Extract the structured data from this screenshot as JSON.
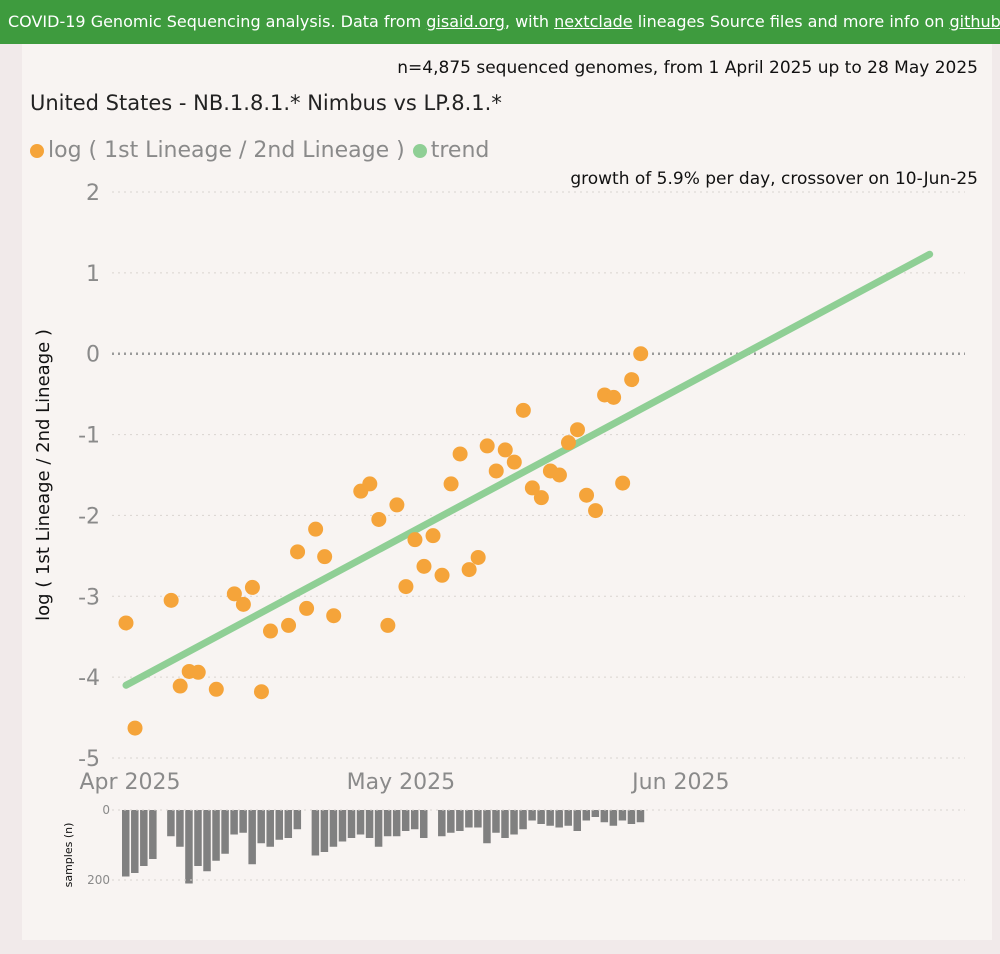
{
  "banner": {
    "text_1": "COVID-19 Genomic Sequencing analysis. Data from ",
    "link_gisaid": "gisaid.org",
    "text_2": ", with ",
    "link_nextclade": "nextclade",
    "text_3": " lineages Source files and more info on ",
    "link_github": "github"
  },
  "colors": {
    "banner_bg": "#3e9b3e",
    "points": "#f5a43a",
    "trend": "#8fcf95",
    "bars": "#808080"
  },
  "chart_data": [
    {
      "type": "scatter",
      "subtitle": "n=4,875 sequenced genomes, from 1 April 2025 up to 28 May 2025",
      "title": "United States - NB.1.8.1.* Nimbus vs LP.8.1.*",
      "annotation": "growth of 5.9% per day, crossover on 10-Jun-25",
      "ylabel": "log ( 1st Lineage / 2nd Lineage )",
      "xlabel": "",
      "legend": [
        {
          "name": "log ( 1st Lineage / 2nd Lineage )",
          "color": "#f5a43a"
        },
        {
          "name": "trend",
          "color": "#8fcf95"
        }
      ],
      "legend_position": "top-left",
      "ylim": [
        -5,
        2
      ],
      "y_ticks": [
        "2",
        "1",
        "0",
        "-1",
        "-2",
        "-3",
        "-4",
        "-5"
      ],
      "x_tick_labels": [
        {
          "label": "Apr 2025",
          "date": "2025-04-01"
        },
        {
          "label": "May 2025",
          "date": "2025-05-01"
        },
        {
          "label": "Jun 2025",
          "date": "2025-06-01"
        }
      ],
      "xlim": [
        "2025-04-01",
        "2025-06-29"
      ],
      "grid": "horizontal dotted",
      "points": [
        {
          "x": "2025-04-01",
          "y": -3.33
        },
        {
          "x": "2025-04-02",
          "y": -4.63
        },
        {
          "x": "2025-04-06",
          "y": -3.05
        },
        {
          "x": "2025-04-07",
          "y": -4.11
        },
        {
          "x": "2025-04-08",
          "y": -3.93
        },
        {
          "x": "2025-04-09",
          "y": -3.94
        },
        {
          "x": "2025-04-11",
          "y": -4.15
        },
        {
          "x": "2025-04-13",
          "y": -2.97
        },
        {
          "x": "2025-04-14",
          "y": -3.1
        },
        {
          "x": "2025-04-15",
          "y": -2.89
        },
        {
          "x": "2025-04-16",
          "y": -4.18
        },
        {
          "x": "2025-04-17",
          "y": -3.43
        },
        {
          "x": "2025-04-19",
          "y": -3.36
        },
        {
          "x": "2025-04-20",
          "y": -2.45
        },
        {
          "x": "2025-04-21",
          "y": -3.15
        },
        {
          "x": "2025-04-22",
          "y": -2.17
        },
        {
          "x": "2025-04-23",
          "y": -2.51
        },
        {
          "x": "2025-04-24",
          "y": -3.24
        },
        {
          "x": "2025-04-27",
          "y": -1.7
        },
        {
          "x": "2025-04-28",
          "y": -1.61
        },
        {
          "x": "2025-04-29",
          "y": -2.05
        },
        {
          "x": "2025-04-30",
          "y": -3.36
        },
        {
          "x": "2025-05-01",
          "y": -1.87
        },
        {
          "x": "2025-05-02",
          "y": -2.88
        },
        {
          "x": "2025-05-03",
          "y": -2.3
        },
        {
          "x": "2025-05-04",
          "y": -2.63
        },
        {
          "x": "2025-05-05",
          "y": -2.25
        },
        {
          "x": "2025-05-06",
          "y": -2.74
        },
        {
          "x": "2025-05-07",
          "y": -1.61
        },
        {
          "x": "2025-05-08",
          "y": -1.24
        },
        {
          "x": "2025-05-09",
          "y": -2.67
        },
        {
          "x": "2025-05-10",
          "y": -2.52
        },
        {
          "x": "2025-05-11",
          "y": -1.14
        },
        {
          "x": "2025-05-12",
          "y": -1.45
        },
        {
          "x": "2025-05-13",
          "y": -1.19
        },
        {
          "x": "2025-05-14",
          "y": -1.34
        },
        {
          "x": "2025-05-15",
          "y": -0.7
        },
        {
          "x": "2025-05-16",
          "y": -1.66
        },
        {
          "x": "2025-05-17",
          "y": -1.78
        },
        {
          "x": "2025-05-18",
          "y": -1.45
        },
        {
          "x": "2025-05-19",
          "y": -1.5
        },
        {
          "x": "2025-05-20",
          "y": -1.1
        },
        {
          "x": "2025-05-21",
          "y": -0.94
        },
        {
          "x": "2025-05-22",
          "y": -1.75
        },
        {
          "x": "2025-05-23",
          "y": -1.94
        },
        {
          "x": "2025-05-24",
          "y": -0.51
        },
        {
          "x": "2025-05-25",
          "y": -0.54
        },
        {
          "x": "2025-05-26",
          "y": -1.6
        },
        {
          "x": "2025-05-27",
          "y": -0.32
        },
        {
          "x": "2025-05-28",
          "y": 0.0
        }
      ],
      "trend": {
        "x": [
          "2025-04-01",
          "2025-06-29"
        ],
        "y": [
          -4.1,
          1.23
        ]
      }
    },
    {
      "type": "bar",
      "ylabel": "samples (n)",
      "y_ticks": [
        "0",
        "200"
      ],
      "ylim": [
        0,
        200
      ],
      "orientation": "downward",
      "start_date": "2025-04-01",
      "values": [
        190,
        180,
        160,
        140,
        0,
        75,
        105,
        210,
        160,
        175,
        145,
        125,
        70,
        65,
        155,
        95,
        105,
        85,
        80,
        55,
        0,
        130,
        120,
        105,
        90,
        80,
        70,
        80,
        105,
        75,
        75,
        60,
        55,
        80,
        0,
        75,
        65,
        60,
        50,
        50,
        95,
        65,
        80,
        70,
        55,
        30,
        40,
        45,
        50,
        45,
        60,
        30,
        20,
        35,
        45,
        30,
        40,
        35
      ]
    }
  ]
}
